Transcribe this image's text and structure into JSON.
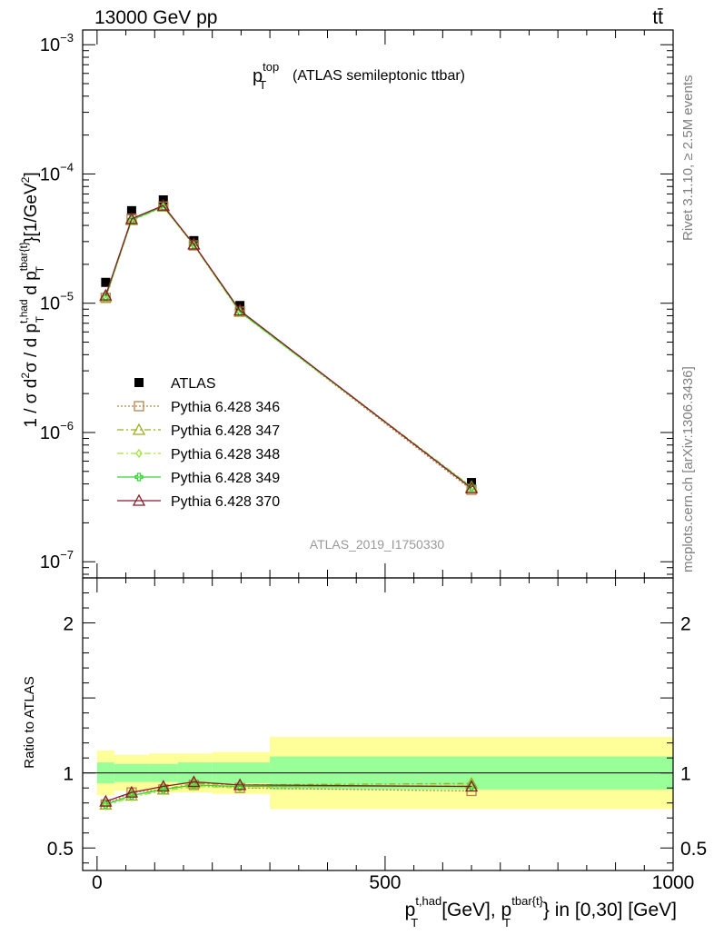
{
  "header": {
    "energy_label": "13000 GeV pp",
    "process_label": "tt̄",
    "side_label_rivet": "Rivet 3.1.10, ≥ 2.5M events",
    "side_label_mcplots": "mcplots.cern.ch [arXiv:1306.3436]"
  },
  "chart_data": [
    {
      "type": "line",
      "panel": "main",
      "title_main": "p",
      "title_sub": "T",
      "title_sup": "top",
      "title_rest": "(ATLAS semileptonic ttbar)",
      "ylabel": "1 / σ d²σ / d p_T^{t,had} d p_T^{tbar{t}}[1/GeV²]",
      "yscale": "log",
      "ylim": [
        7.5e-08,
        0.0013
      ],
      "xlim": [
        -25,
        1000
      ],
      "y_tick_labels": [
        {
          "base": "10",
          "exp": "−3",
          "value": 0.001
        },
        {
          "base": "10",
          "exp": "−4",
          "value": 0.0001
        },
        {
          "base": "10",
          "exp": "−5",
          "value": 1e-05
        },
        {
          "base": "10",
          "exp": "−6",
          "value": 1e-06
        },
        {
          "base": "10",
          "exp": "−7",
          "value": 1e-07
        }
      ],
      "watermark": "ATLAS_2019_I1750330",
      "legend_position": "left-middle",
      "x": [
        15,
        60,
        115,
        168,
        248,
        650
      ],
      "series": [
        {
          "name": "ATLAS",
          "marker": "filled-square",
          "color": "#000000",
          "values": [
            1.45e-05,
            5.2e-05,
            6.3e-05,
            3.05e-05,
            9.6e-06,
            4.1e-07
          ]
        },
        {
          "name": "Pythia 6.428 346",
          "marker": "open-square",
          "line": "dotted",
          "color": "#b5854a",
          "values": [
            1.1e-05,
            4.5e-05,
            5.6e-05,
            2.8e-05,
            8.6e-06,
            3.6e-07
          ]
        },
        {
          "name": "Pythia 6.428 347",
          "marker": "open-triangle",
          "line": "dashdot",
          "color": "#9aae1e",
          "values": [
            1.12e-05,
            4.4e-05,
            5.6e-05,
            2.85e-05,
            8.6e-06,
            3.8e-07
          ]
        },
        {
          "name": "Pythia 6.428 348",
          "marker": "open-diamond",
          "line": "dashdot",
          "color": "#9ee63c",
          "values": [
            1.1e-05,
            4.35e-05,
            5.55e-05,
            2.8e-05,
            8.5e-06,
            3.75e-07
          ]
        },
        {
          "name": "Pythia 6.428 349",
          "marker": "open-cross",
          "line": "solid",
          "color": "#3ad33a",
          "values": [
            1.12e-05,
            4.4e-05,
            5.6e-05,
            2.85e-05,
            8.6e-06,
            3.75e-07
          ]
        },
        {
          "name": "Pythia 6.428 370",
          "marker": "open-triangle",
          "line": "solid",
          "color": "#8b1a2b",
          "values": [
            1.15e-05,
            4.5e-05,
            5.7e-05,
            2.85e-05,
            8.8e-06,
            3.7e-07
          ]
        }
      ]
    },
    {
      "type": "line",
      "panel": "ratio",
      "ylabel": "Ratio to ATLAS",
      "ylim": [
        0.35,
        2.3
      ],
      "y_ticks": [
        0.5,
        1,
        2
      ],
      "y_tick_labels": [
        "0.5",
        "1",
        "2"
      ],
      "xlim": [
        -25,
        1000
      ],
      "x_ticks": [
        0,
        500,
        1000
      ],
      "x_tick_labels": [
        "0",
        "500",
        "1000"
      ],
      "xlabel_main": "p",
      "xlabel_sub1": "T",
      "xlabel_sup1": "t,had",
      "xlabel_mid": "[GeV], p",
      "xlabel_sub2": "T",
      "xlabel_sup2": "tbar{t}",
      "xlabel_rest": "} in [0,30] [GeV]",
      "bins": [
        [
          0,
          30
        ],
        [
          30,
          90
        ],
        [
          90,
          140
        ],
        [
          140,
          200
        ],
        [
          200,
          300
        ],
        [
          300,
          1000
        ]
      ],
      "band_inner": [
        [
          0.93,
          1.07
        ],
        [
          0.94,
          1.06
        ],
        [
          0.94,
          1.06
        ],
        [
          0.93,
          1.07
        ],
        [
          0.93,
          1.07
        ],
        [
          0.89,
          1.11
        ]
      ],
      "band_outer": [
        [
          0.85,
          1.15
        ],
        [
          0.88,
          1.12
        ],
        [
          0.87,
          1.13
        ],
        [
          0.87,
          1.13
        ],
        [
          0.86,
          1.14
        ],
        [
          0.76,
          1.24
        ]
      ],
      "x": [
        15,
        60,
        115,
        168,
        248,
        650
      ],
      "series": [
        {
          "name": "Pythia 6.428 346",
          "values": [
            0.79,
            0.87,
            0.89,
            0.92,
            0.9,
            0.88
          ]
        },
        {
          "name": "Pythia 6.428 347",
          "values": [
            0.79,
            0.85,
            0.89,
            0.93,
            0.92,
            0.93
          ]
        },
        {
          "name": "Pythia 6.428 348",
          "values": [
            0.78,
            0.84,
            0.88,
            0.91,
            0.9,
            0.92
          ]
        },
        {
          "name": "Pythia 6.428 349",
          "values": [
            0.79,
            0.85,
            0.89,
            0.92,
            0.91,
            0.91
          ]
        },
        {
          "name": "Pythia 6.428 370",
          "values": [
            0.81,
            0.87,
            0.91,
            0.94,
            0.92,
            0.91
          ]
        }
      ]
    }
  ]
}
